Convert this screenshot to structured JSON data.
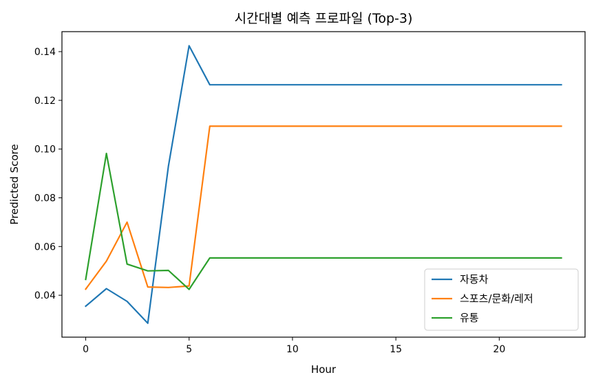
{
  "chart_data": {
    "type": "line",
    "title": "시간대별 예측 프로파일 (Top-3)",
    "xlabel": "Hour",
    "ylabel": "Predicted Score",
    "xlim": [
      -1.15,
      24.15
    ],
    "ylim": [
      0.0228,
      0.1482
    ],
    "xticks": [
      0,
      5,
      10,
      15,
      20
    ],
    "yticks": [
      0.04,
      0.06,
      0.08,
      0.1,
      0.12,
      0.14
    ],
    "ytick_labels": [
      "0.04",
      "0.06",
      "0.08",
      "0.10",
      "0.12",
      "0.14"
    ],
    "grid": false,
    "legend_position": "lower-right",
    "x": [
      0,
      1,
      2,
      3,
      4,
      5,
      6,
      7,
      8,
      9,
      10,
      11,
      12,
      13,
      14,
      15,
      16,
      17,
      18,
      19,
      20,
      21,
      22,
      23
    ],
    "series": [
      {
        "name": "자동차",
        "color": "#1f77b4",
        "values": [
          0.0355,
          0.0427,
          0.0375,
          0.0285,
          0.093,
          0.1424,
          0.1264,
          0.1264,
          0.1264,
          0.1264,
          0.1264,
          0.1264,
          0.1264,
          0.1264,
          0.1264,
          0.1264,
          0.1264,
          0.1264,
          0.1264,
          0.1264,
          0.1264,
          0.1264,
          0.1264,
          0.1264
        ]
      },
      {
        "name": "스포츠/문화/레저",
        "color": "#ff7f0e",
        "values": [
          0.0425,
          0.054,
          0.07,
          0.0434,
          0.0432,
          0.0438,
          0.1094,
          0.1094,
          0.1094,
          0.1094,
          0.1094,
          0.1094,
          0.1094,
          0.1094,
          0.1094,
          0.1094,
          0.1094,
          0.1094,
          0.1094,
          0.1094,
          0.1094,
          0.1094,
          0.1094,
          0.1094
        ]
      },
      {
        "name": "유통",
        "color": "#2ca02c",
        "values": [
          0.0465,
          0.0982,
          0.0528,
          0.05,
          0.0502,
          0.0424,
          0.0553,
          0.0553,
          0.0553,
          0.0553,
          0.0553,
          0.0553,
          0.0553,
          0.0553,
          0.0553,
          0.0553,
          0.0553,
          0.0553,
          0.0553,
          0.0553,
          0.0553,
          0.0553,
          0.0553,
          0.0553
        ]
      }
    ]
  }
}
